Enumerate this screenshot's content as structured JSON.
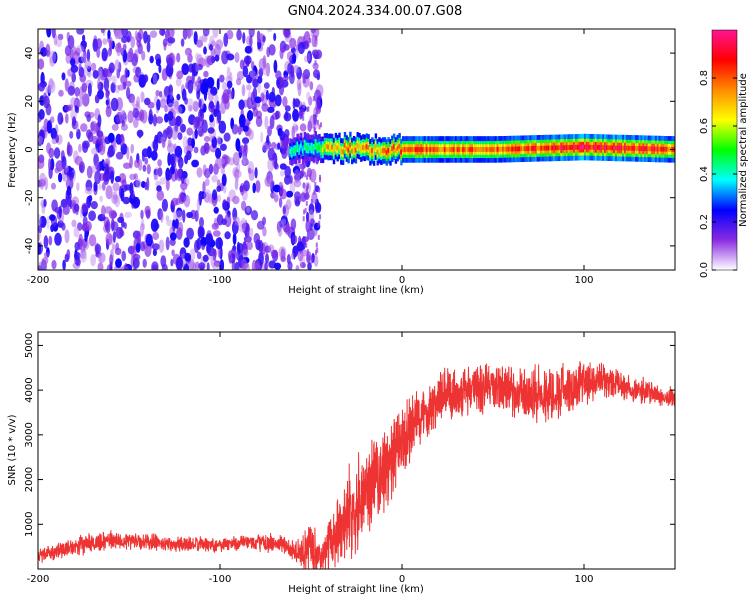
{
  "title": "GN04.2024.334.00.07.G08",
  "chart_data": [
    {
      "type": "heatmap",
      "title": "GN04.2024.334.00.07.G08",
      "xlabel": "Height of straight line (km)",
      "ylabel": "Frequency (Hz)",
      "xlim": [
        -200,
        150
      ],
      "ylim": [
        -50,
        50
      ],
      "xticks": [
        -200,
        -100,
        0,
        100
      ],
      "yticks": [
        -40,
        -20,
        0,
        20,
        40
      ],
      "colorbar": {
        "label": "Normalized spectral amplitude",
        "range": [
          0,
          1
        ],
        "ticks": [
          "0.0",
          "0.2",
          "0.4",
          "0.6",
          "0.8"
        ],
        "colors": [
          "#ffffff",
          "#8a2be2",
          "#0000ff",
          "#00ffff",
          "#00ff00",
          "#ffff00",
          "#ff8c00",
          "#ff0000",
          "#ff1493"
        ]
      },
      "features": {
        "noise_region_km": [
          -200,
          -45
        ],
        "noise_amplitude": 0.2,
        "signal_band": [
          {
            "x": -62,
            "freq": 0,
            "amp": 0.45
          },
          {
            "x": -50,
            "freq": 1,
            "amp": 0.45
          },
          {
            "x": -40,
            "freq": 0,
            "amp": 0.75
          },
          {
            "x": -25,
            "freq": 1,
            "amp": 0.8
          },
          {
            "x": -15,
            "freq": 0,
            "amp": 0.75
          },
          {
            "x": 0,
            "freq": 0,
            "amp": 0.85
          },
          {
            "x": 50,
            "freq": 0,
            "amp": 0.8
          },
          {
            "x": 100,
            "freq": 1,
            "amp": 0.95
          },
          {
            "x": 150,
            "freq": 0,
            "amp": 0.85
          }
        ]
      }
    },
    {
      "type": "line",
      "xlabel": "Height of straight line (km)",
      "ylabel": "SNR (10 * v/v)",
      "xlim": [
        -200,
        150
      ],
      "ylim": [
        0,
        5300
      ],
      "xticks": [
        -200,
        -100,
        0,
        100
      ],
      "yticks": [
        1000,
        2000,
        3000,
        4000,
        5000
      ],
      "color": "#ee3333",
      "series": [
        {
          "x": [
            -200,
            -180,
            -160,
            -140,
            -120,
            -100,
            -80,
            -65,
            -55,
            -50,
            -45,
            -35,
            -25,
            -15,
            -5,
            0,
            10,
            20,
            35,
            50,
            65,
            80,
            95,
            110,
            130,
            150
          ],
          "mean": [
            300,
            500,
            650,
            600,
            550,
            550,
            600,
            550,
            300,
            600,
            200,
            900,
            1500,
            2000,
            2400,
            2800,
            3400,
            3800,
            4000,
            4100,
            3900,
            3900,
            4100,
            4200,
            4000,
            3800
          ],
          "spread": [
            200,
            250,
            250,
            220,
            200,
            200,
            220,
            250,
            400,
            800,
            300,
            1000,
            1200,
            1200,
            1100,
            1000,
            800,
            700,
            700,
            700,
            650,
            800,
            650,
            450,
            350,
            300
          ]
        }
      ]
    }
  ]
}
